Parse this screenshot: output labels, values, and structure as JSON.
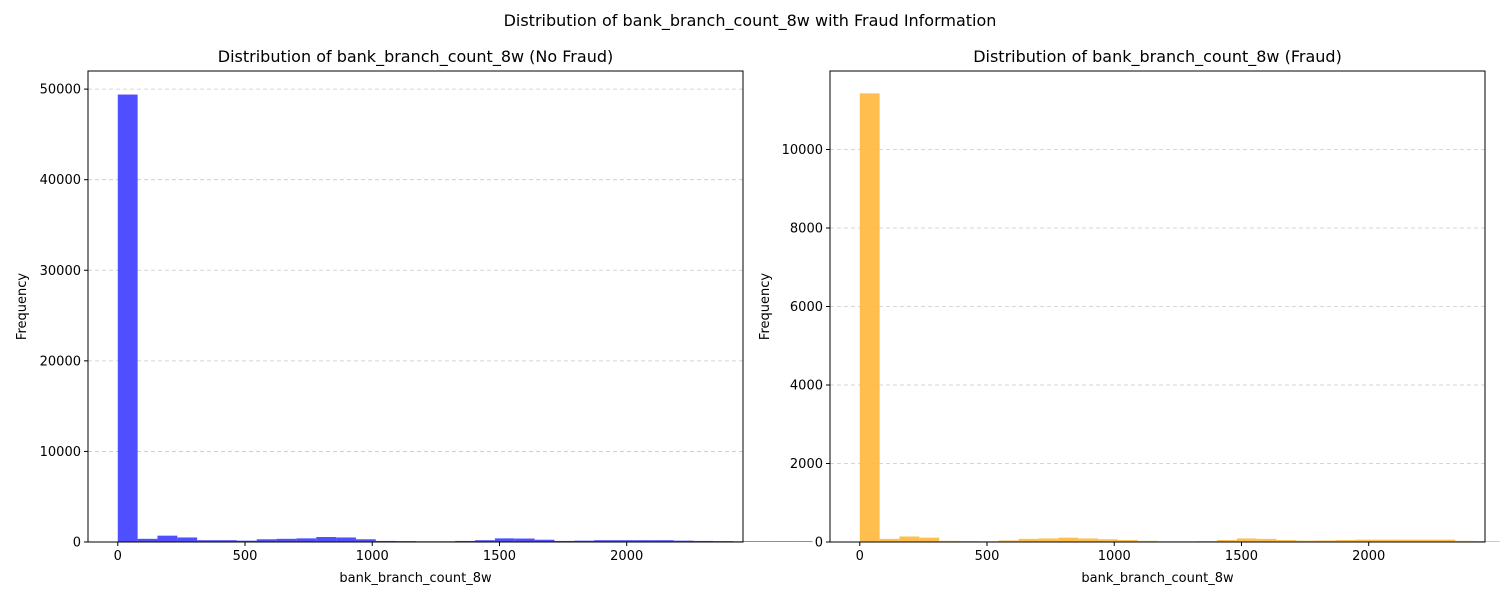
{
  "figure": {
    "suptitle": "Distribution of bank_branch_count_8w with Fraud Information"
  },
  "chart_data": [
    {
      "type": "bar",
      "subtype": "histogram",
      "title": "Distribution of bank_branch_count_8w (No Fraud)",
      "xlabel": "bank_branch_count_8w",
      "ylabel": "Frequency",
      "color": "#4646ff",
      "xlim": [
        -117,
        2457
      ],
      "ylim": [
        0,
        52000
      ],
      "xticks": [
        0,
        500,
        1000,
        1500,
        2000
      ],
      "yticks": [
        0,
        10000,
        20000,
        30000,
        40000,
        50000
      ],
      "grid": "y-dashed",
      "bin_start": 0,
      "bin_width": 78,
      "values": [
        49400,
        350,
        700,
        500,
        200,
        200,
        150,
        300,
        350,
        400,
        550,
        500,
        300,
        120,
        100,
        80,
        80,
        120,
        200,
        400,
        380,
        250,
        120,
        150,
        200,
        200,
        200,
        200,
        150,
        120,
        100,
        80,
        80,
        80,
        80
      ]
    },
    {
      "type": "bar",
      "subtype": "histogram",
      "title": "Distribution of bank_branch_count_8w (Fraud)",
      "xlabel": "bank_branch_count_8w",
      "ylabel": "Frequency",
      "color": "#ffbb44",
      "xlim": [
        -117,
        2457
      ],
      "ylim": [
        0,
        12000
      ],
      "xticks": [
        0,
        500,
        1000,
        1500,
        2000
      ],
      "yticks": [
        0,
        2000,
        4000,
        6000,
        8000,
        10000
      ],
      "grid": "y-dashed",
      "bin_start": 0,
      "bin_width": 78,
      "values": [
        11430,
        80,
        140,
        110,
        30,
        25,
        20,
        40,
        80,
        90,
        110,
        90,
        70,
        50,
        30,
        20,
        20,
        25,
        50,
        90,
        80,
        50,
        35,
        40,
        50,
        60,
        60,
        60,
        60,
        60,
        30,
        25,
        20,
        20,
        20
      ]
    }
  ]
}
